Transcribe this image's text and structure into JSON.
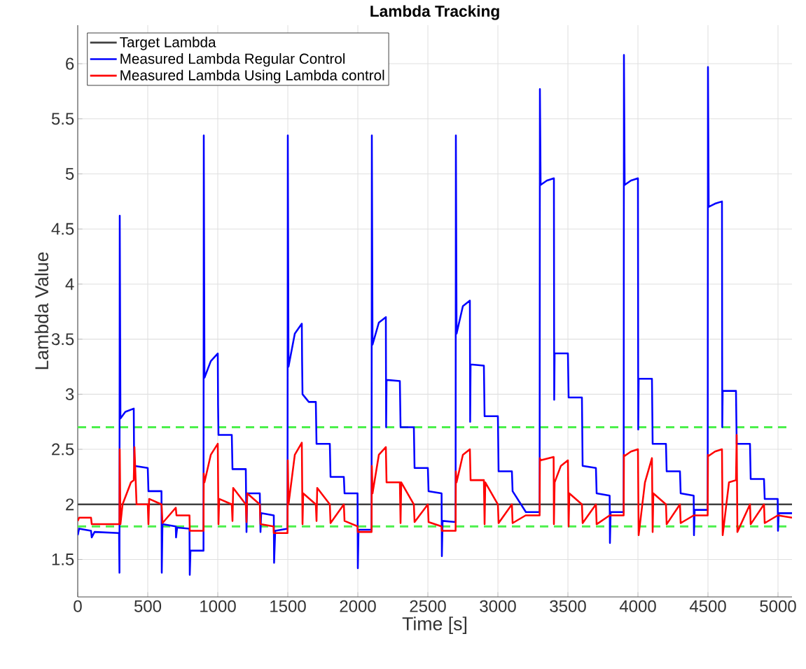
{
  "chart_data": {
    "type": "line",
    "title": "Lambda Tracking",
    "xlabel": "Time [s]",
    "ylabel": "Lambda Value",
    "xlim": [
      0,
      5100
    ],
    "ylim": [
      1.16,
      6.35
    ],
    "xticks": [
      0,
      500,
      1000,
      1500,
      2000,
      2500,
      3000,
      3500,
      4000,
      4500,
      5000
    ],
    "yticks": [
      1.5,
      2,
      2.5,
      3,
      3.5,
      4,
      4.5,
      5,
      5.5,
      6
    ],
    "grid": true,
    "legend": "top left",
    "line_style": "solid",
    "marker": "none",
    "ref_lines": [
      {
        "axis": "y",
        "value": 2.7,
        "color": "#4cf04c",
        "line_style": "dashed"
      },
      {
        "axis": "y",
        "value": 1.8,
        "color": "#4cf04c",
        "line_style": "dashed"
      }
    ],
    "series": [
      {
        "name": "Target Lambda",
        "color": "#404040",
        "x": [
          0,
          5100
        ],
        "values": [
          2,
          2
        ]
      },
      {
        "name": "Measured Lambda Regular Control",
        "color": "#0000ff",
        "x": [
          0,
          10,
          95,
          100,
          120,
          295,
          298,
          300,
          305,
          340,
          400,
          402,
          405,
          500,
          505,
          598,
          600,
          605,
          700,
          702,
          710,
          798,
          800,
          805,
          898,
          900,
          905,
          950,
          1000,
          1002,
          1005,
          1100,
          1105,
          1200,
          1205,
          1210,
          1300,
          1305,
          1310,
          1400,
          1402,
          1410,
          1498,
          1500,
          1505,
          1550,
          1600,
          1602,
          1605,
          1650,
          1700,
          1705,
          1800,
          1805,
          1900,
          1905,
          1998,
          2000,
          2005,
          2098,
          2100,
          2105,
          2150,
          2200,
          2202,
          2205,
          2300,
          2305,
          2400,
          2405,
          2500,
          2505,
          2598,
          2600,
          2605,
          2698,
          2700,
          2705,
          2750,
          2800,
          2802,
          2805,
          2900,
          2905,
          3000,
          3005,
          3100,
          3105,
          3200,
          3298,
          3300,
          3305,
          3350,
          3400,
          3402,
          3405,
          3500,
          3505,
          3600,
          3605,
          3700,
          3705,
          3798,
          3800,
          3805,
          3898,
          3900,
          3905,
          3950,
          4000,
          4002,
          4005,
          4100,
          4105,
          4200,
          4205,
          4300,
          4305,
          4398,
          4400,
          4405,
          4498,
          4500,
          4505,
          4550,
          4600,
          4602,
          4605,
          4700,
          4705,
          4800,
          4805,
          4900,
          4905,
          4998,
          5000,
          5005,
          5100
        ],
        "values": [
          1.72,
          1.78,
          1.76,
          1.7,
          1.75,
          1.74,
          1.38,
          4.62,
          2.78,
          2.84,
          2.87,
          2.5,
          2.35,
          2.33,
          2.12,
          2.12,
          1.38,
          1.82,
          1.8,
          1.7,
          1.79,
          1.78,
          1.36,
          1.58,
          1.58,
          5.35,
          3.15,
          3.3,
          3.37,
          2.9,
          2.63,
          2.63,
          2.32,
          2.32,
          1.75,
          2.1,
          2.1,
          1.75,
          1.92,
          1.9,
          1.47,
          1.76,
          1.78,
          5.35,
          3.25,
          3.55,
          3.64,
          3.3,
          3.0,
          2.93,
          2.93,
          2.55,
          2.55,
          2.25,
          2.25,
          2.1,
          2.1,
          1.42,
          1.77,
          1.77,
          5.35,
          3.45,
          3.65,
          3.7,
          2.7,
          3.13,
          3.12,
          2.7,
          2.7,
          2.33,
          2.33,
          2.12,
          2.1,
          1.53,
          1.85,
          1.84,
          5.35,
          3.55,
          3.8,
          3.85,
          2.75,
          3.27,
          3.26,
          2.8,
          2.8,
          2.3,
          2.3,
          2.12,
          1.93,
          1.93,
          5.77,
          4.9,
          4.94,
          4.96,
          2.95,
          3.37,
          3.37,
          2.97,
          2.97,
          2.35,
          2.33,
          2.1,
          2.08,
          1.65,
          1.93,
          1.93,
          6.08,
          4.9,
          4.94,
          4.96,
          2.68,
          3.14,
          3.14,
          2.55,
          2.55,
          2.3,
          2.3,
          2.1,
          2.08,
          1.72,
          1.95,
          1.95,
          5.97,
          4.7,
          4.73,
          4.75,
          2.7,
          3.03,
          3.03,
          2.55,
          2.55,
          2.23,
          2.23,
          2.05,
          2.05,
          1.76,
          1.92,
          1.92
        ]
      },
      {
        "name": "Measured Lambda Using Lambda control",
        "color": "#ff0000",
        "x": [
          0,
          10,
          95,
          100,
          298,
          300,
          305,
          320,
          380,
          400,
          405,
          420,
          500,
          505,
          510,
          598,
          600,
          605,
          700,
          705,
          798,
          800,
          898,
          900,
          905,
          950,
          1000,
          1005,
          1010,
          1100,
          1105,
          1110,
          1200,
          1205,
          1210,
          1300,
          1305,
          1398,
          1400,
          1498,
          1500,
          1505,
          1550,
          1600,
          1605,
          1610,
          1700,
          1705,
          1710,
          1800,
          1805,
          1900,
          1905,
          1998,
          2000,
          2098,
          2100,
          2105,
          2150,
          2200,
          2205,
          2300,
          2305,
          2310,
          2400,
          2405,
          2500,
          2505,
          2598,
          2600,
          2698,
          2700,
          2705,
          2750,
          2800,
          2805,
          2900,
          2905,
          2910,
          3000,
          3005,
          3100,
          3105,
          3198,
          3200,
          3298,
          3300,
          3305,
          3398,
          3400,
          3405,
          3450,
          3500,
          3505,
          3510,
          3600,
          3605,
          3700,
          3705,
          3798,
          3800,
          3898,
          3900,
          3905,
          3950,
          4000,
          4005,
          4050,
          4100,
          4105,
          4110,
          4200,
          4205,
          4300,
          4305,
          4398,
          4400,
          4498,
          4500,
          4505,
          4550,
          4600,
          4605,
          4650,
          4700,
          4705,
          4710,
          4800,
          4805,
          4900,
          4905,
          4998,
          5000,
          5100
        ],
        "values": [
          1.85,
          1.88,
          1.88,
          1.82,
          1.82,
          2.5,
          1.82,
          2.0,
          2.2,
          2.22,
          2.52,
          2.0,
          2.0,
          1.82,
          2.05,
          2.0,
          1.97,
          1.83,
          1.97,
          1.9,
          1.9,
          1.76,
          1.76,
          2.28,
          2.2,
          2.45,
          2.55,
          1.82,
          2.05,
          2.0,
          1.85,
          2.15,
          2.0,
          1.84,
          2.1,
          2.0,
          1.82,
          1.8,
          1.74,
          1.74,
          2.4,
          2.0,
          2.45,
          2.56,
          1.82,
          2.1,
          2.0,
          1.85,
          2.15,
          2.0,
          1.83,
          2.0,
          1.85,
          1.8,
          1.75,
          1.75,
          2.35,
          2.1,
          2.45,
          2.52,
          2.2,
          2.2,
          1.83,
          2.2,
          2.0,
          1.84,
          2.0,
          1.84,
          1.8,
          1.76,
          1.76,
          2.3,
          2.2,
          2.45,
          2.5,
          2.22,
          2.22,
          1.82,
          2.2,
          2.0,
          1.83,
          2.0,
          1.83,
          1.9,
          1.9,
          1.9,
          2.42,
          2.4,
          2.43,
          1.82,
          2.2,
          2.35,
          2.4,
          1.8,
          2.1,
          2.0,
          1.83,
          2.0,
          1.82,
          1.9,
          1.9,
          1.9,
          2.45,
          2.44,
          2.48,
          2.5,
          1.72,
          2.2,
          2.42,
          1.75,
          2.1,
          2.0,
          1.82,
          2.0,
          1.83,
          1.9,
          1.9,
          1.9,
          2.45,
          2.44,
          2.48,
          2.5,
          1.72,
          2.2,
          2.22,
          2.63,
          1.75,
          2.0,
          1.82,
          2.0,
          1.83,
          1.9,
          1.9,
          1.88
        ]
      }
    ]
  }
}
